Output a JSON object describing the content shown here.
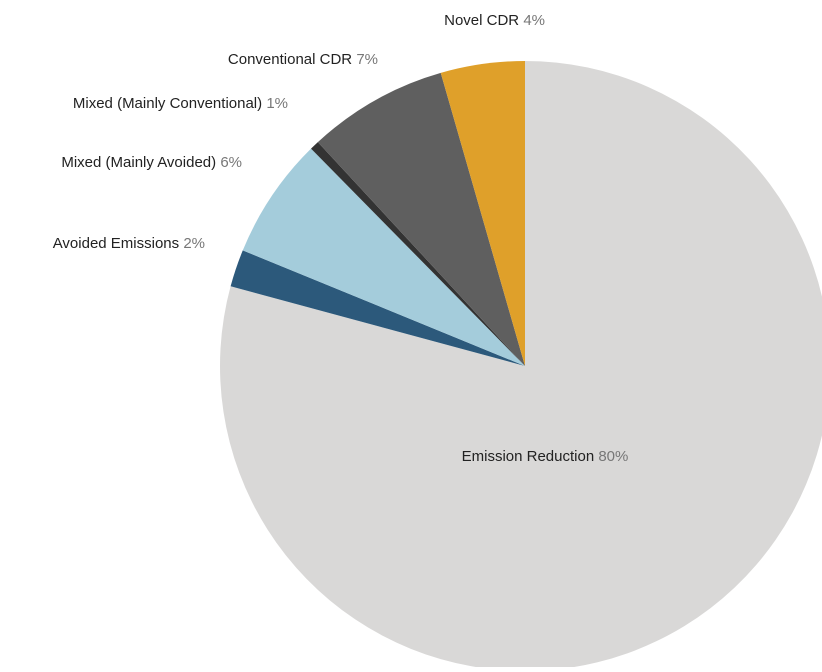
{
  "chart_data": {
    "type": "pie",
    "title": "",
    "slices": [
      {
        "label": "Emission Reduction",
        "pct_text": "80%",
        "value": 80.0,
        "color": "#d9d8d7"
      },
      {
        "label": "Avoided Emissions",
        "pct_text": "2%",
        "value": 2.0,
        "color": "#2c597b"
      },
      {
        "label": "Mixed (Mainly Avoided)",
        "pct_text": "6%",
        "value": 6.5,
        "color": "#a4ccdb"
      },
      {
        "label": "Mixed (Mainly Conventional)",
        "pct_text": "1%",
        "value": 0.5,
        "color": "#333333"
      },
      {
        "label": "Conventional CDR",
        "pct_text": "7%",
        "value": 7.5,
        "color": "#5f5f5f"
      },
      {
        "label": "Novel CDR",
        "pct_text": "4%",
        "value": 4.5,
        "color": "#dfa02a"
      }
    ],
    "start_angle_deg": 0,
    "direction": "clockwise",
    "label_color": "#222222",
    "pct_color": "#777777"
  }
}
